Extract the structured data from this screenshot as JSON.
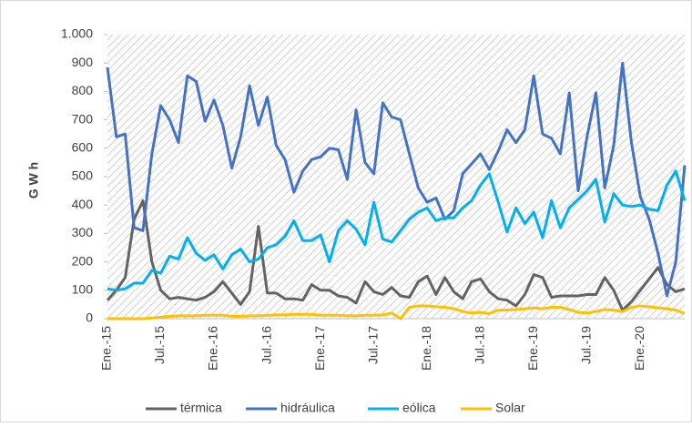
{
  "chart_data": {
    "type": "line",
    "y_label": "G W h",
    "categories": [
      "Ene.-15",
      null,
      null,
      null,
      null,
      null,
      "Jul.-15",
      null,
      null,
      null,
      null,
      null,
      "Ene.-16",
      null,
      null,
      null,
      null,
      null,
      "Jul.-16",
      null,
      null,
      null,
      null,
      null,
      "Ene.-17",
      null,
      null,
      null,
      null,
      null,
      "Jul.-17",
      null,
      null,
      null,
      null,
      null,
      "Ene.-18",
      null,
      null,
      null,
      null,
      null,
      "Jul.-18",
      null,
      null,
      null,
      null,
      null,
      "Ene.-19",
      null,
      null,
      null,
      null,
      null,
      "Jul.-19",
      null,
      null,
      null,
      null,
      null,
      "Ene.-20",
      null,
      null,
      null,
      null,
      null
    ],
    "series": [
      {
        "name": "térmica",
        "color": "#636363",
        "values": [
          65,
          100,
          145,
          350,
          415,
          200,
          100,
          70,
          75,
          70,
          65,
          75,
          95,
          130,
          90,
          50,
          95,
          325,
          90,
          90,
          70,
          70,
          65,
          120,
          100,
          100,
          80,
          75,
          55,
          130,
          95,
          85,
          110,
          80,
          75,
          130,
          150,
          85,
          145,
          95,
          70,
          130,
          140,
          95,
          70,
          65,
          45,
          85,
          155,
          145,
          75,
          80,
          80,
          80,
          85,
          85,
          145,
          100,
          30,
          60,
          100,
          140,
          180,
          120,
          95,
          105
        ]
      },
      {
        "name": "hidráulica",
        "color": "#4472c4",
        "values": [
          885,
          640,
          650,
          320,
          310,
          580,
          750,
          700,
          620,
          855,
          835,
          695,
          770,
          680,
          530,
          640,
          820,
          680,
          780,
          610,
          560,
          445,
          520,
          560,
          570,
          600,
          595,
          490,
          735,
          550,
          510,
          760,
          710,
          700,
          580,
          460,
          410,
          425,
          350,
          380,
          510,
          545,
          580,
          525,
          590,
          665,
          620,
          665,
          855,
          650,
          635,
          580,
          795,
          450,
          640,
          795,
          460,
          610,
          900,
          620,
          430,
          350,
          230,
          80,
          200,
          540
        ]
      },
      {
        "name": "eólica",
        "color": "#00b0f0",
        "values": [
          105,
          100,
          105,
          125,
          125,
          170,
          160,
          220,
          210,
          285,
          230,
          205,
          225,
          175,
          225,
          245,
          200,
          210,
          250,
          260,
          290,
          345,
          275,
          275,
          295,
          200,
          310,
          345,
          315,
          260,
          410,
          280,
          270,
          310,
          350,
          375,
          390,
          345,
          355,
          355,
          390,
          415,
          470,
          510,
          410,
          305,
          390,
          335,
          375,
          285,
          415,
          320,
          390,
          420,
          450,
          490,
          340,
          440,
          400,
          395,
          400,
          385,
          380,
          470,
          520,
          415
        ]
      },
      {
        "name": "Solar",
        "color": "#ffc000",
        "values": [
          0,
          0,
          0,
          0,
          0,
          2,
          5,
          8,
          10,
          10,
          10,
          12,
          12,
          12,
          8,
          8,
          10,
          10,
          12,
          13,
          13,
          15,
          15,
          15,
          12,
          12,
          12,
          10,
          10,
          12,
          12,
          13,
          20,
          0,
          40,
          45,
          45,
          42,
          40,
          35,
          25,
          20,
          22,
          18,
          30,
          30,
          32,
          35,
          38,
          35,
          40,
          40,
          32,
          22,
          20,
          25,
          32,
          30,
          25,
          40,
          45,
          42,
          38,
          35,
          30,
          18
        ]
      }
    ],
    "ylim": [
      0,
      1000
    ],
    "yticks": [
      0,
      100,
      200,
      300,
      400,
      500,
      600,
      700,
      800,
      900,
      {
        "value": 1000,
        "label": "1.000"
      }
    ],
    "grid": false
  }
}
